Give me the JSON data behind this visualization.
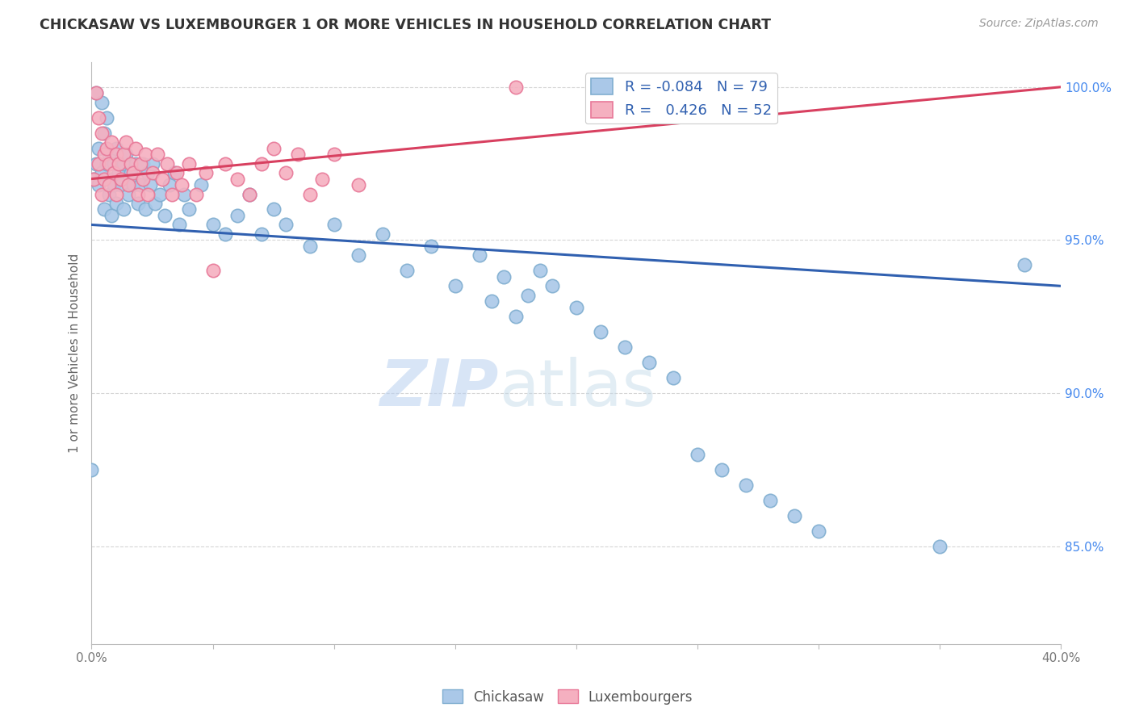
{
  "title": "CHICKASAW VS LUXEMBOURGER 1 OR MORE VEHICLES IN HOUSEHOLD CORRELATION CHART",
  "source": "Source: ZipAtlas.com",
  "ylabel": "1 or more Vehicles in Household",
  "xlim": [
    0.0,
    0.4
  ],
  "ylim": [
    0.818,
    1.008
  ],
  "xticks": [
    0.0,
    0.05,
    0.1,
    0.15,
    0.2,
    0.25,
    0.3,
    0.35,
    0.4
  ],
  "xticklabels": [
    "0.0%",
    "",
    "",
    "",
    "",
    "",
    "",
    "",
    "40.0%"
  ],
  "yticks": [
    0.85,
    0.9,
    0.95,
    1.0
  ],
  "yticklabels": [
    "85.0%",
    "90.0%",
    "95.0%",
    "100.0%"
  ],
  "chickasaw_color": "#aac8e8",
  "luxembourger_color": "#f5b0c0",
  "chickasaw_edge": "#80aed0",
  "luxembourger_edge": "#e87898",
  "trend_chickasaw_color": "#3060b0",
  "trend_luxembourger_color": "#d84060",
  "r_chickasaw": -0.084,
  "n_chickasaw": 79,
  "r_luxembourger": 0.426,
  "n_luxembourger": 52,
  "watermark_zip": "ZIP",
  "watermark_atlas": "atlas",
  "grid_color": "#cccccc",
  "background_color": "#ffffff",
  "chickasaw_x": [
    0.001,
    0.002,
    0.002,
    0.003,
    0.003,
    0.004,
    0.004,
    0.005,
    0.005,
    0.006,
    0.006,
    0.007,
    0.007,
    0.008,
    0.008,
    0.009,
    0.009,
    0.01,
    0.01,
    0.011,
    0.012,
    0.013,
    0.013,
    0.014,
    0.015,
    0.016,
    0.017,
    0.018,
    0.019,
    0.02,
    0.021,
    0.022,
    0.023,
    0.024,
    0.025,
    0.026,
    0.028,
    0.03,
    0.032,
    0.034,
    0.036,
    0.038,
    0.04,
    0.045,
    0.05,
    0.055,
    0.06,
    0.065,
    0.07,
    0.075,
    0.08,
    0.09,
    0.1,
    0.11,
    0.12,
    0.13,
    0.14,
    0.15,
    0.16,
    0.165,
    0.17,
    0.175,
    0.18,
    0.185,
    0.19,
    0.2,
    0.21,
    0.22,
    0.23,
    0.24,
    0.25,
    0.26,
    0.27,
    0.28,
    0.29,
    0.3,
    0.35,
    0.385,
    0.0
  ],
  "chickasaw_y": [
    0.97,
    0.975,
    0.998,
    0.968,
    0.98,
    0.995,
    0.972,
    0.985,
    0.96,
    0.975,
    0.99,
    0.965,
    0.978,
    0.97,
    0.958,
    0.975,
    0.968,
    0.98,
    0.962,
    0.972,
    0.968,
    0.975,
    0.96,
    0.978,
    0.965,
    0.972,
    0.968,
    0.975,
    0.962,
    0.968,
    0.975,
    0.96,
    0.972,
    0.968,
    0.975,
    0.962,
    0.965,
    0.958,
    0.968,
    0.972,
    0.955,
    0.965,
    0.96,
    0.968,
    0.955,
    0.952,
    0.958,
    0.965,
    0.952,
    0.96,
    0.955,
    0.948,
    0.955,
    0.945,
    0.952,
    0.94,
    0.948,
    0.935,
    0.945,
    0.93,
    0.938,
    0.925,
    0.932,
    0.94,
    0.935,
    0.928,
    0.92,
    0.915,
    0.91,
    0.905,
    0.88,
    0.875,
    0.87,
    0.865,
    0.86,
    0.855,
    0.85,
    0.942,
    0.875
  ],
  "luxembourger_x": [
    0.001,
    0.002,
    0.003,
    0.003,
    0.004,
    0.004,
    0.005,
    0.005,
    0.006,
    0.007,
    0.007,
    0.008,
    0.009,
    0.01,
    0.01,
    0.011,
    0.012,
    0.013,
    0.014,
    0.015,
    0.016,
    0.017,
    0.018,
    0.019,
    0.02,
    0.021,
    0.022,
    0.023,
    0.025,
    0.027,
    0.029,
    0.031,
    0.033,
    0.035,
    0.037,
    0.04,
    0.043,
    0.047,
    0.05,
    0.055,
    0.06,
    0.065,
    0.07,
    0.075,
    0.08,
    0.085,
    0.09,
    0.095,
    0.1,
    0.11,
    0.175,
    0.238
  ],
  "luxembourger_y": [
    0.97,
    0.998,
    0.975,
    0.99,
    0.965,
    0.985,
    0.978,
    0.97,
    0.98,
    0.975,
    0.968,
    0.982,
    0.972,
    0.978,
    0.965,
    0.975,
    0.97,
    0.978,
    0.982,
    0.968,
    0.975,
    0.972,
    0.98,
    0.965,
    0.975,
    0.97,
    0.978,
    0.965,
    0.972,
    0.978,
    0.97,
    0.975,
    0.965,
    0.972,
    0.968,
    0.975,
    0.965,
    0.972,
    0.94,
    0.975,
    0.97,
    0.965,
    0.975,
    0.98,
    0.972,
    0.978,
    0.965,
    0.97,
    0.978,
    0.968,
    1.0,
    0.998
  ],
  "chickasaw_trend_x0": 0.0,
  "chickasaw_trend_y0": 0.955,
  "chickasaw_trend_x1": 0.4,
  "chickasaw_trend_y1": 0.935,
  "luxembourger_trend_x0": 0.0,
  "luxembourger_trend_y0": 0.97,
  "luxembourger_trend_x1": 0.4,
  "luxembourger_trend_y1": 1.0
}
